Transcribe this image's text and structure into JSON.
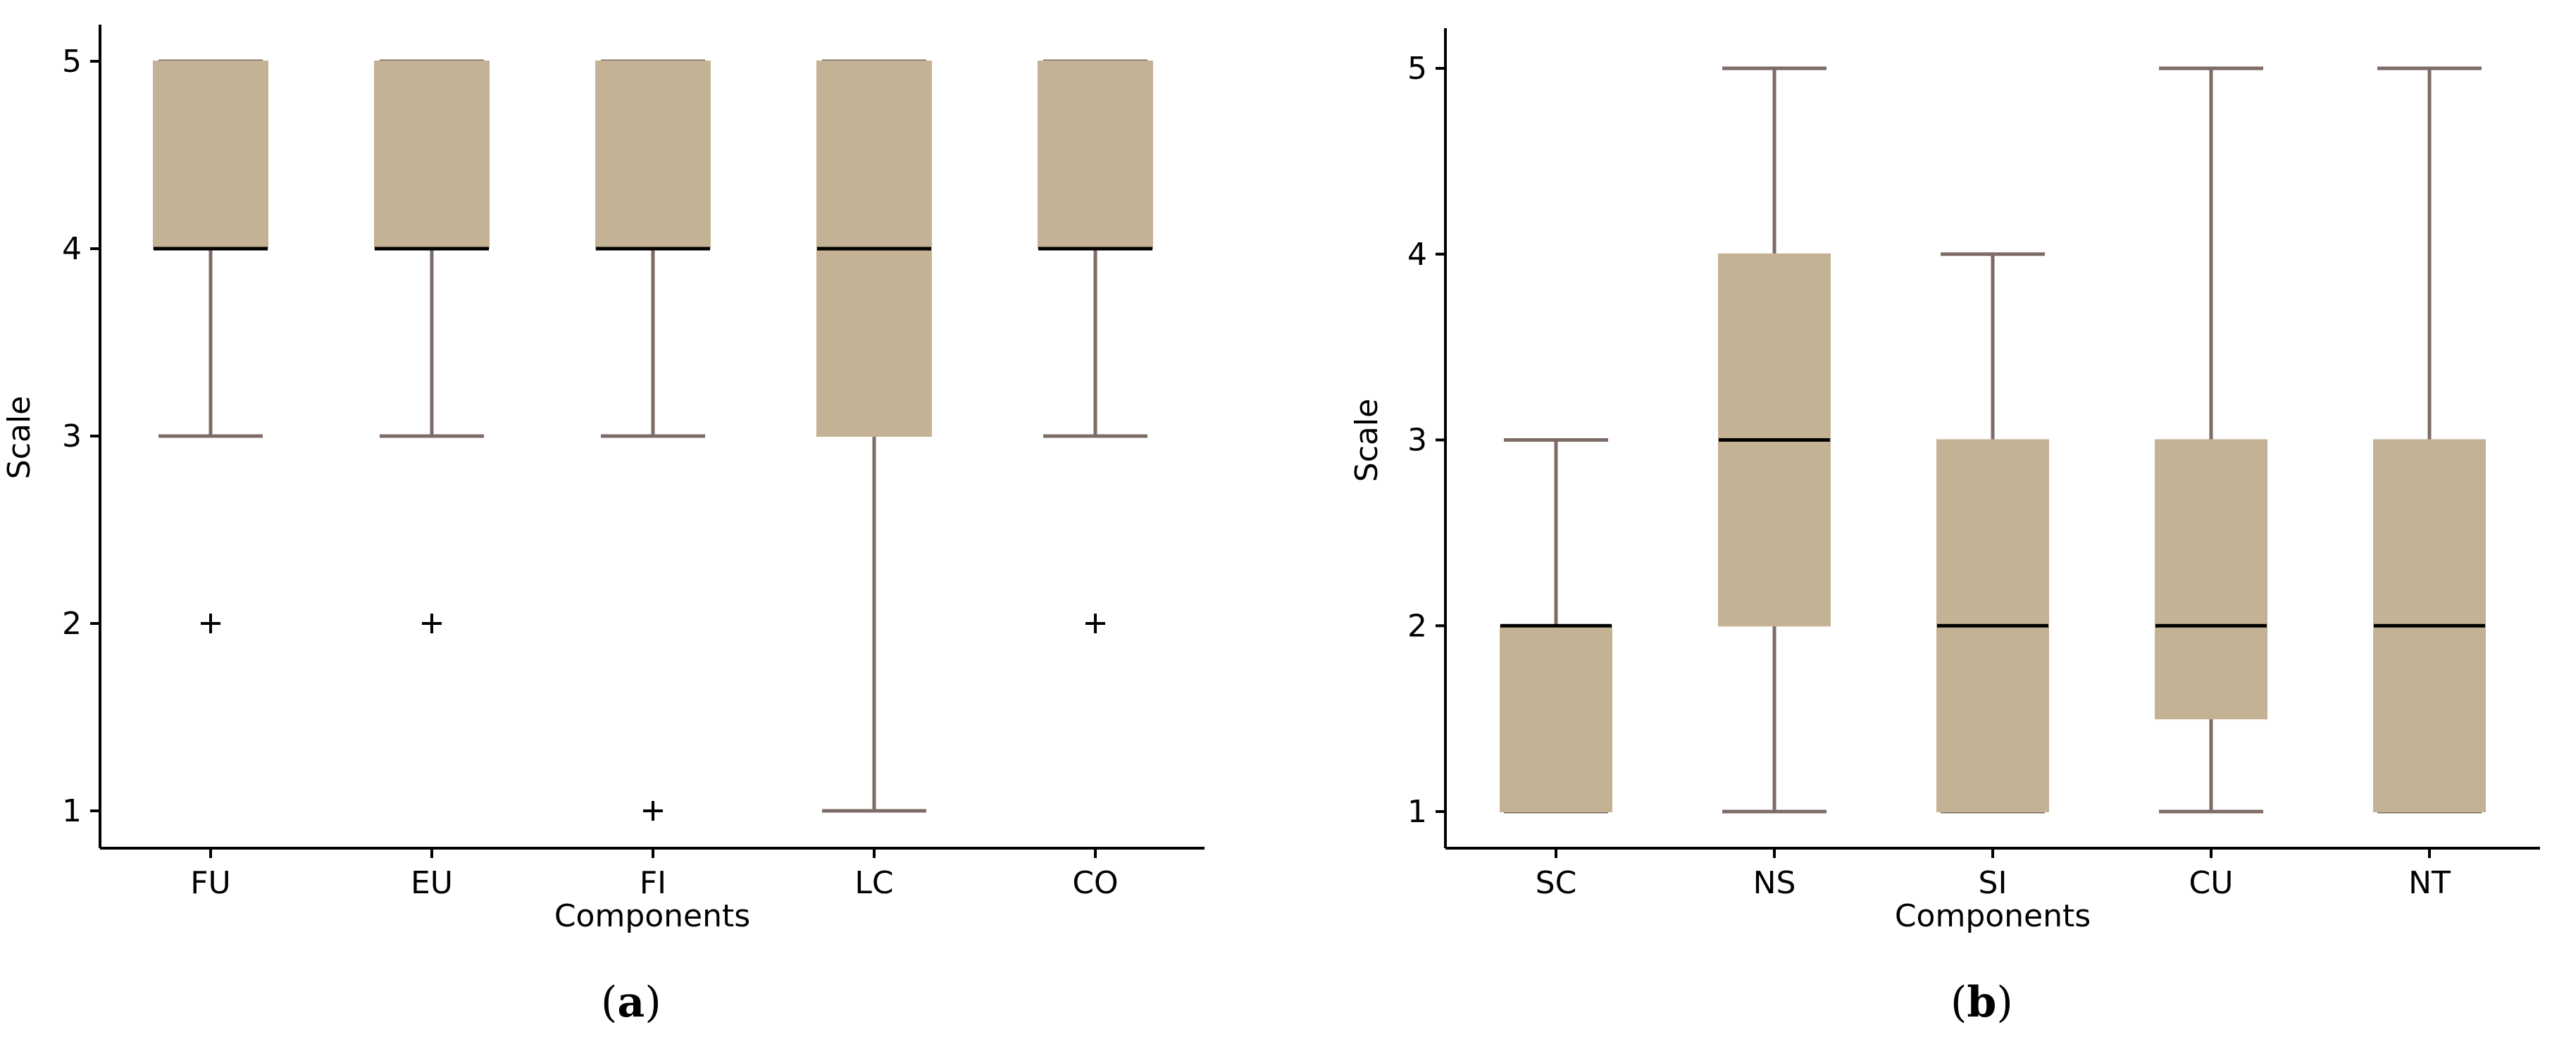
{
  "chart_data": [
    {
      "panel": "(a)",
      "panel_letter": "a",
      "type": "box",
      "xlabel": "Components",
      "ylabel": "Scale",
      "ylim": [
        0.8,
        5.2
      ],
      "yticks": [
        1,
        2,
        3,
        4,
        5
      ],
      "categories": [
        "FU",
        "EU",
        "FI",
        "LC",
        "CO"
      ],
      "boxes": [
        {
          "label": "FU",
          "whisker_low": 3,
          "q1": 4,
          "median": 4,
          "q3": 5,
          "whisker_high": 5,
          "outliers": [
            2
          ]
        },
        {
          "label": "EU",
          "whisker_low": 3,
          "q1": 4,
          "median": 4,
          "q3": 5,
          "whisker_high": 5,
          "outliers": [
            2
          ]
        },
        {
          "label": "FI",
          "whisker_low": 3,
          "q1": 4,
          "median": 4,
          "q3": 5,
          "whisker_high": 5,
          "outliers": [
            1
          ]
        },
        {
          "label": "LC",
          "whisker_low": 1,
          "q1": 3,
          "median": 4,
          "q3": 5,
          "whisker_high": 5,
          "outliers": []
        },
        {
          "label": "CO",
          "whisker_low": 3,
          "q1": 4,
          "median": 4,
          "q3": 5,
          "whisker_high": 5,
          "outliers": [
            2
          ]
        }
      ],
      "grid": false
    },
    {
      "panel": "(b)",
      "panel_letter": "b",
      "type": "box",
      "xlabel": "Components",
      "ylabel": "Scale",
      "ylim": [
        0.8,
        5.2
      ],
      "yticks": [
        1,
        2,
        3,
        4,
        5
      ],
      "categories": [
        "SC",
        "NS",
        "SI",
        "CU",
        "NT"
      ],
      "boxes": [
        {
          "label": "SC",
          "whisker_low": 1,
          "q1": 1,
          "median": 2,
          "q3": 2,
          "whisker_high": 3,
          "outliers": []
        },
        {
          "label": "NS",
          "whisker_low": 1,
          "q1": 2,
          "median": 3,
          "q3": 4,
          "whisker_high": 5,
          "outliers": []
        },
        {
          "label": "SI",
          "whisker_low": 1,
          "q1": 1,
          "median": 2,
          "q3": 3,
          "whisker_high": 4,
          "outliers": []
        },
        {
          "label": "CU",
          "whisker_low": 1,
          "q1": 1.5,
          "median": 2,
          "q3": 3,
          "whisker_high": 5,
          "outliers": []
        },
        {
          "label": "NT",
          "whisker_low": 1,
          "q1": 1,
          "median": 2,
          "q3": 3,
          "whisker_high": 5,
          "outliers": []
        }
      ],
      "grid": false
    }
  ],
  "colors": {
    "box_fill": "#c4b295",
    "whisker": "#7d6b66",
    "median": "#000000",
    "axis": "#000000"
  }
}
